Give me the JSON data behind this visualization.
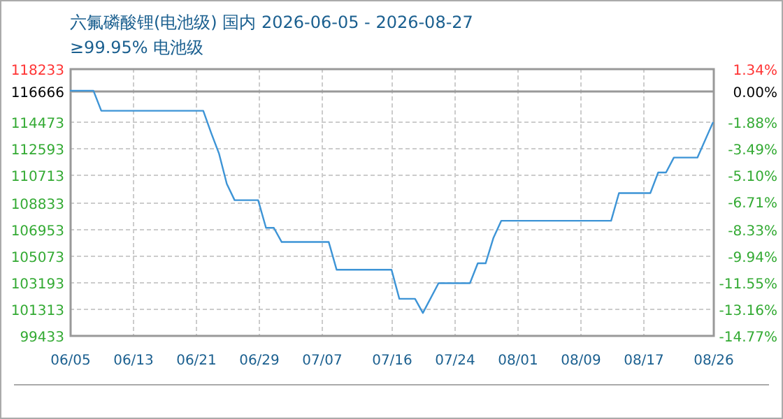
{
  "chart_data": {
    "type": "line",
    "title": "六氟磷酸锂(电池级) 国内 2026-06-05 - 2026-08-27",
    "subtitle": "≥99.95% 电池级",
    "x": [
      "2026-06-05",
      "2026-06-08",
      "2026-06-09",
      "2026-06-22",
      "2026-06-23",
      "2026-06-24",
      "2026-06-25",
      "2026-06-26",
      "2026-06-29",
      "2026-06-30",
      "2026-07-01",
      "2026-07-02",
      "2026-07-08",
      "2026-07-09",
      "2026-07-16",
      "2026-07-17",
      "2026-07-19",
      "2026-07-20",
      "2026-07-22",
      "2026-07-26",
      "2026-07-27",
      "2026-07-28",
      "2026-07-29",
      "2026-07-30",
      "2026-08-13",
      "2026-08-14",
      "2026-08-18",
      "2026-08-19",
      "2026-08-20",
      "2026-08-21",
      "2026-08-24",
      "2026-08-26"
    ],
    "series": [
      {
        "color": "#3d94d6",
        "values": [
          116666,
          116666,
          115250,
          115250,
          113700,
          112250,
          110100,
          108950,
          108950,
          107000,
          107000,
          106000,
          106000,
          104050,
          104050,
          102000,
          102000,
          101000,
          103100,
          103100,
          104500,
          104500,
          106300,
          107500,
          107500,
          109450,
          109450,
          110900,
          110900,
          111950,
          111950,
          114450
        ]
      }
    ],
    "xlim": [
      "2026-06-05",
      "2026-08-26"
    ],
    "xticks": [
      {
        "value": "2026-06-05",
        "label": "06/05"
      },
      {
        "value": "2026-06-13",
        "label": "06/13"
      },
      {
        "value": "2026-06-21",
        "label": "06/21"
      },
      {
        "value": "2026-06-29",
        "label": "06/29"
      },
      {
        "value": "2026-07-07",
        "label": "07/07"
      },
      {
        "value": "2026-07-16",
        "label": "07/16"
      },
      {
        "value": "2026-07-24",
        "label": "07/24"
      },
      {
        "value": "2026-08-01",
        "label": "08/01"
      },
      {
        "value": "2026-08-09",
        "label": "08/09"
      },
      {
        "value": "2026-08-17",
        "label": "08/17"
      },
      {
        "value": "2026-08-26",
        "label": "08/26"
      }
    ],
    "ylim": [
      99433,
      118233
    ],
    "yticks": [
      118233,
      116666,
      114473,
      112593,
      110713,
      108833,
      106953,
      105073,
      103193,
      101313,
      99433
    ],
    "y2lim": [
      -14.77,
      1.34
    ],
    "y2ticks": [
      {
        "value": 1.34,
        "label": "1.34%"
      },
      {
        "value": 0,
        "label": "0.00%"
      },
      {
        "value": -1.88,
        "label": "-1.88%"
      },
      {
        "value": -3.49,
        "label": "-3.49%"
      },
      {
        "value": -5.1,
        "label": "-5.10%"
      },
      {
        "value": -6.71,
        "label": "-6.71%"
      },
      {
        "value": -8.33,
        "label": "-8.33%"
      },
      {
        "value": -9.94,
        "label": "-9.94%"
      },
      {
        "value": -11.55,
        "label": "-11.55%"
      },
      {
        "value": -13.16,
        "label": "-13.16%"
      },
      {
        "value": -14.77,
        "label": "-14.77%"
      }
    ],
    "ref_lines": [
      {
        "axis": "y",
        "value": 116666,
        "color": "#999999",
        "line_style": "solid"
      }
    ],
    "grid": true,
    "marker": "none",
    "line_style": "solid"
  }
}
